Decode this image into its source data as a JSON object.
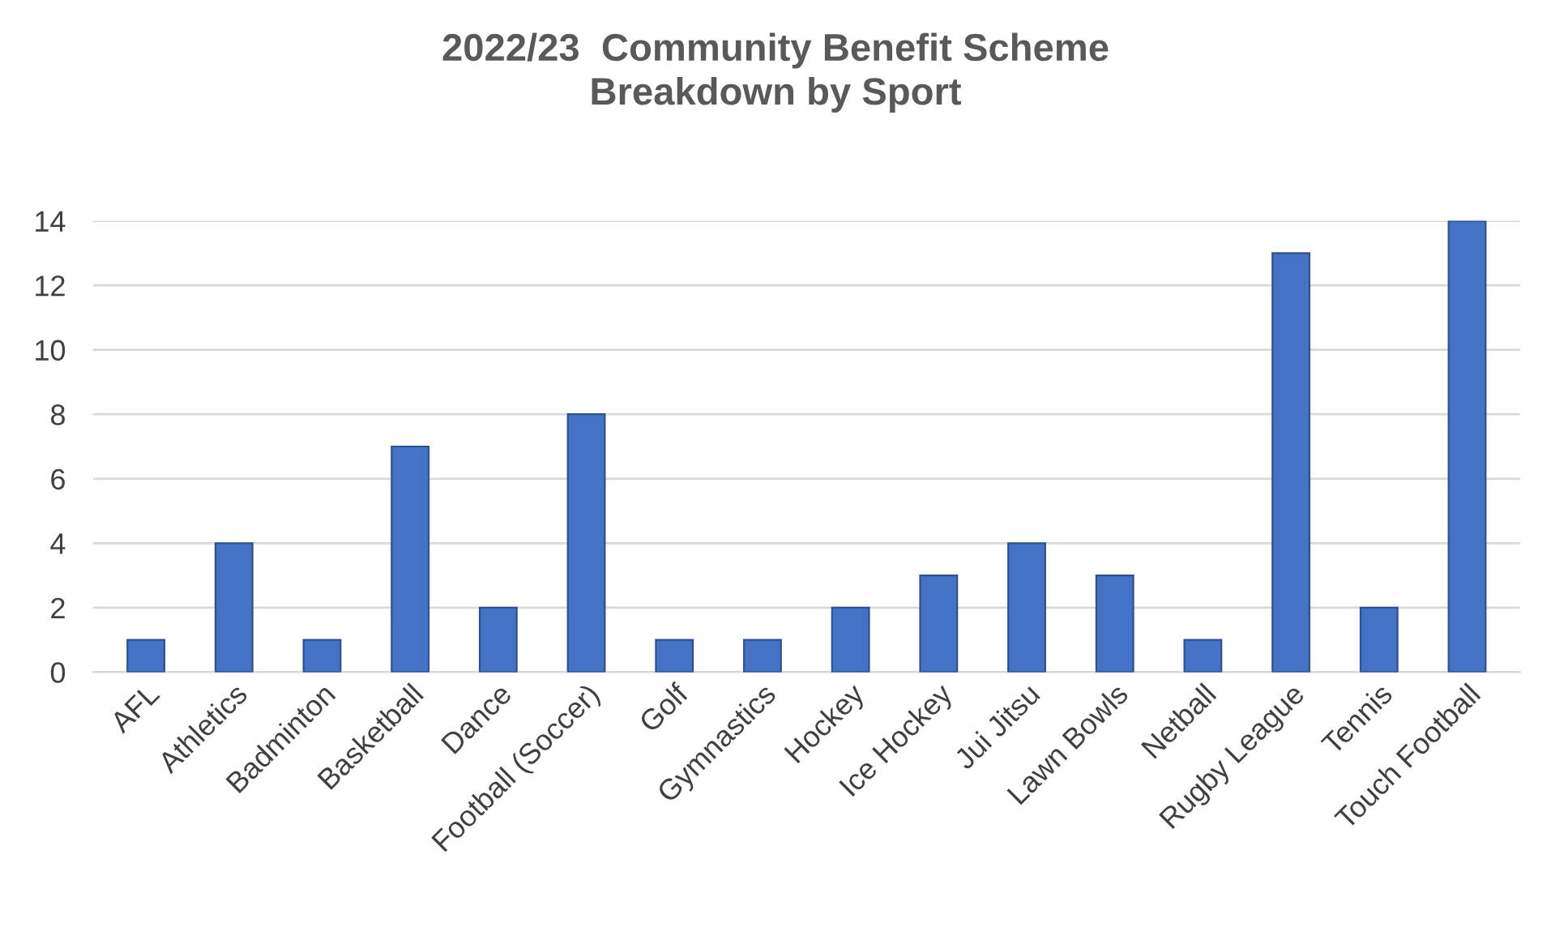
{
  "chart_data": {
    "type": "bar",
    "title": "2022/23  Community Benefit Scheme\nBreakdown by Sport",
    "categories": [
      "AFL",
      "Athletics",
      "Badminton",
      "Basketball",
      "Dance",
      "Football (Soccer)",
      "Golf",
      "Gymnastics",
      "Hockey",
      "Ice Hockey",
      "Jui Jitsu",
      "Lawn Bowls",
      "Netball",
      "Rugby League",
      "Tennis",
      "Touch Football"
    ],
    "values": [
      1,
      4,
      1,
      7,
      2,
      8,
      1,
      1,
      2,
      3,
      4,
      3,
      1,
      13,
      2,
      14
    ],
    "color": "#4472c4",
    "ylim": [
      0,
      14
    ],
    "yticks": [
      0,
      2,
      4,
      6,
      8,
      10,
      12,
      14
    ],
    "grid": "y"
  }
}
